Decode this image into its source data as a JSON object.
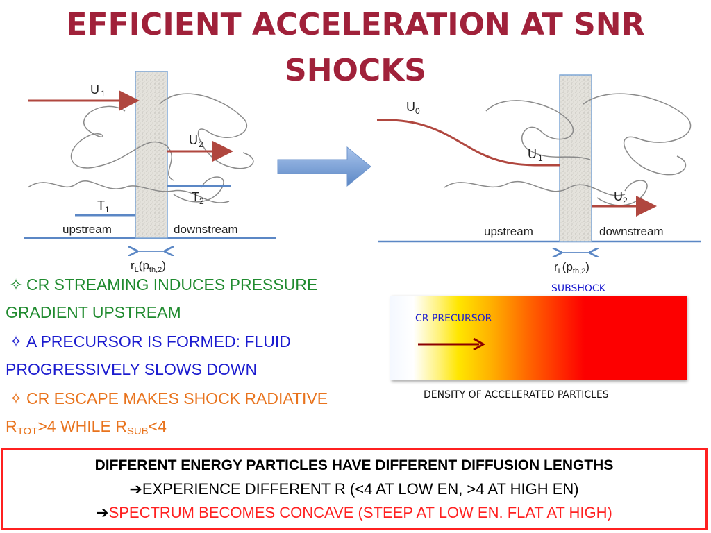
{
  "title": {
    "line1": "EFFICIENT ACCELERATION AT SNR",
    "line2": "SHOCKS"
  },
  "diagram_left": {
    "u1": "U",
    "u1_sub": "1",
    "u2": "U",
    "u2_sub": "2",
    "t1": "T",
    "t1_sub": "1",
    "t2": "T",
    "t2_sub": "2",
    "upstream": "upstream",
    "downstream": "downstream",
    "rl": "r",
    "rl_sub": "L",
    "rl_arg": "(p",
    "rl_arg_sub": "th,2",
    "rl_close": ")"
  },
  "diagram_right": {
    "u0": "U",
    "u0_sub": "0",
    "u1": "U",
    "u1_sub": "1",
    "u2": "U",
    "u2_sub": "2",
    "upstream": "upstream",
    "downstream": "downstream",
    "rl": "r",
    "rl_sub": "L",
    "rl_arg": "(p",
    "rl_arg_sub": "th,2",
    "rl_close": ")"
  },
  "bullets": {
    "b1_line1": "CR STREAMING INDUCES PRESSURE",
    "b1_line2": "GRADIENT UPSTREAM",
    "b2_line1": "A PRECURSOR IS FORMED: FLUID",
    "b2_line2": "PROGRESSIVELY SLOWS DOWN",
    "b3_line1": "CR ESCAPE MAKES SHOCK RADIATIVE",
    "b3_r1": "R",
    "b3_r1_sub": "TOT",
    "b3_mid": ">4 WHILE R",
    "b3_r2_sub": "SUB",
    "b3_end": "<4",
    "star_symbol": "✧"
  },
  "density_bar": {
    "subshock": "SUBSHOCK",
    "precursor": "CR PRECURSOR",
    "caption": "DENSITY OF ACCELERATED PARTICLES"
  },
  "conclusion": {
    "line1": "DIFFERENT ENERGY PARTICLES HAVE DIFFERENT DIFFUSION LENGTHS",
    "arrow": "➔",
    "line2": "EXPERIENCE DIFFERENT R (<4 AT LOW EN, >4 AT HIGH EN)",
    "line3": "SPECTRUM BECOMES CONCAVE (STEEP AT LOW EN. FLAT AT HIGH)"
  },
  "colors": {
    "title": "#a0213a",
    "green": "#1f8a2e",
    "blue": "#1b1bcf",
    "orange": "#e8731d",
    "red": "#ff2020",
    "flow_arrow": "#b0473f",
    "line_blue": "#5b87c5"
  }
}
